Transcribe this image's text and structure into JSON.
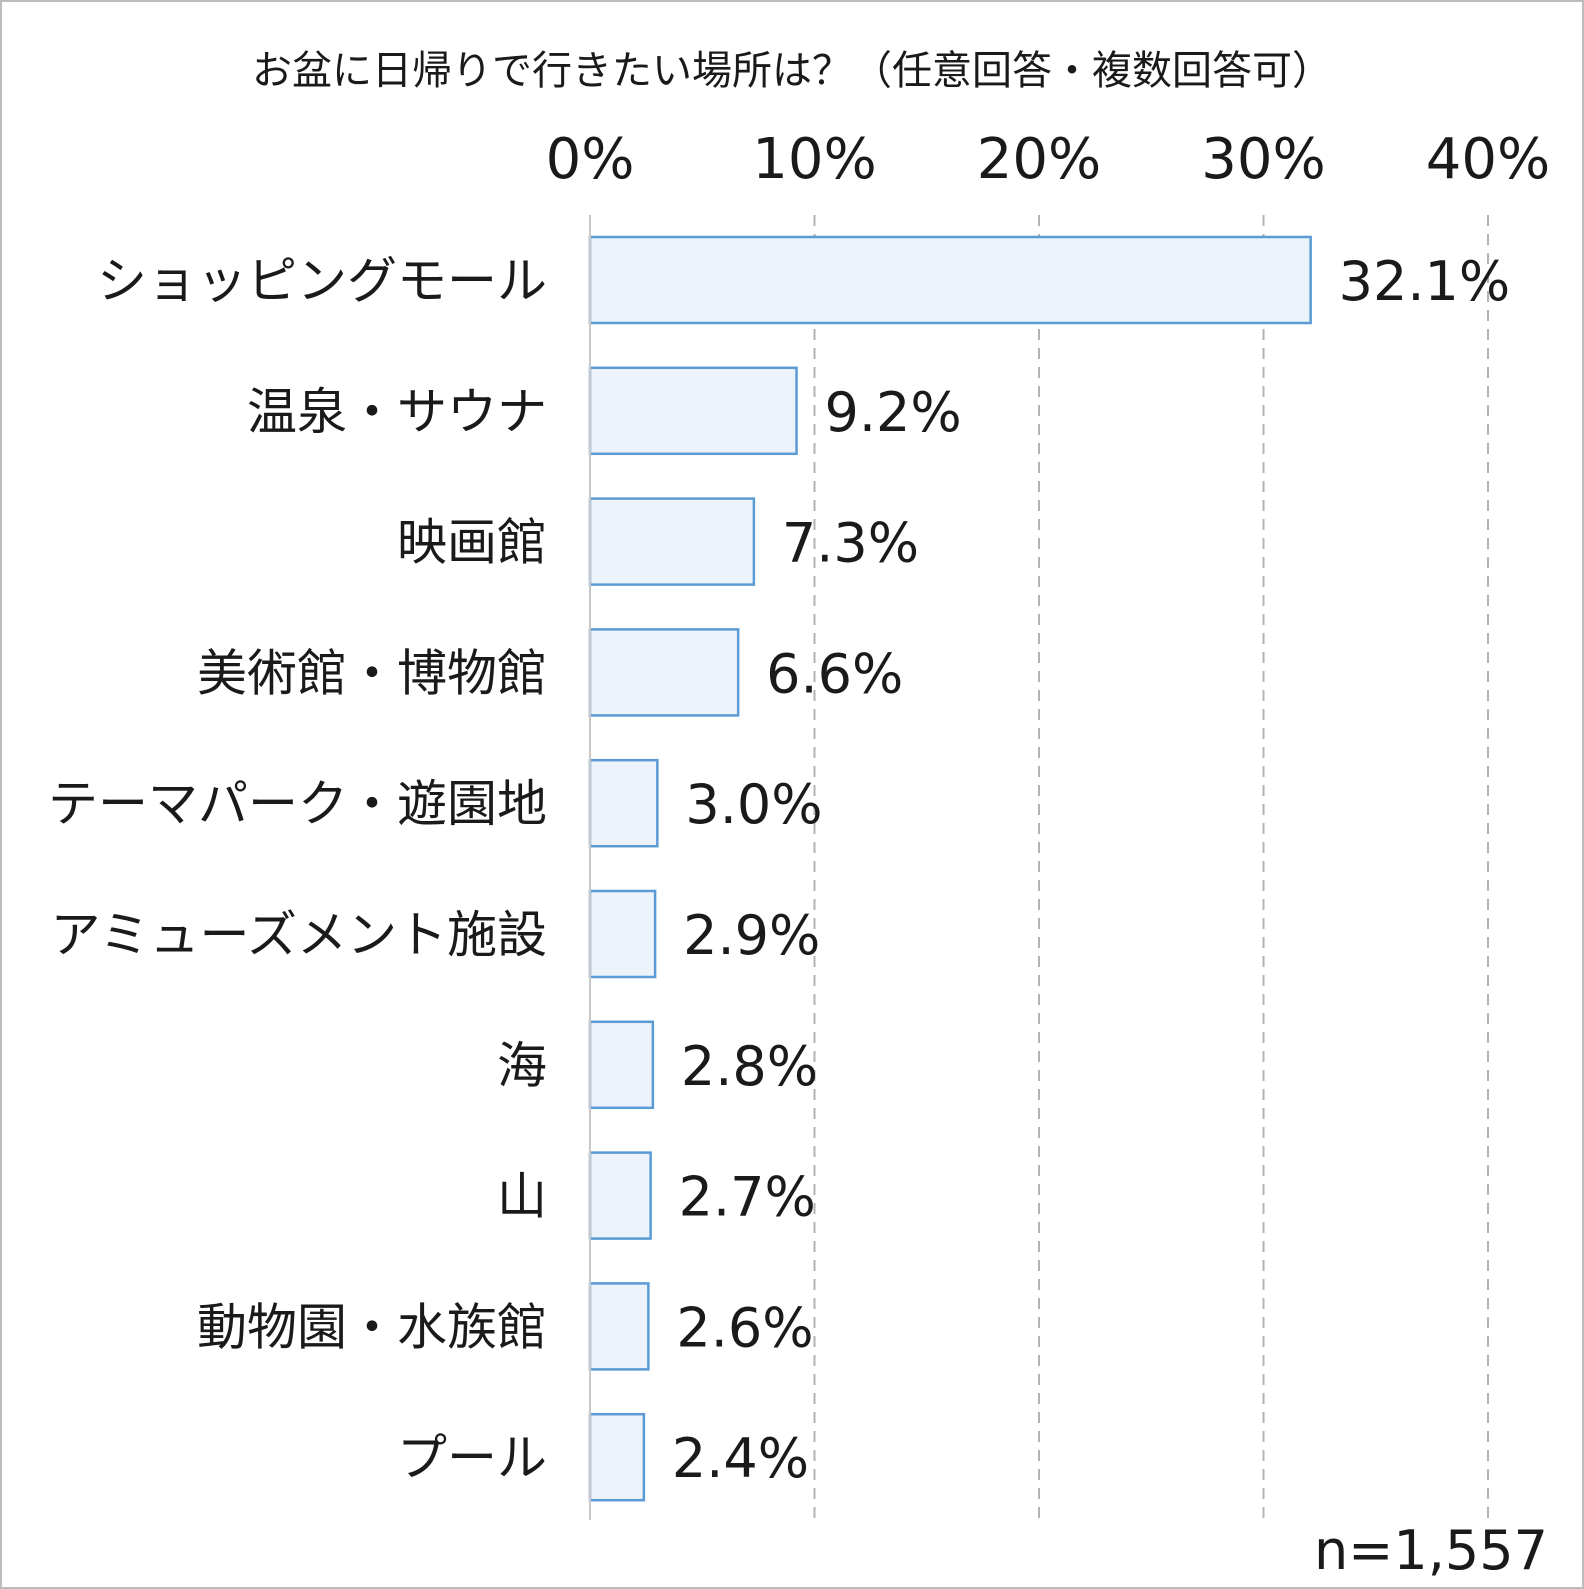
{
  "chart_data": {
    "type": "bar",
    "orientation": "horizontal",
    "title": "お盆に日帰りで行きたい場所は？（任意回答・複数回答可）",
    "categories": [
      "ショッピングモール",
      "温泉・サウナ",
      "映画館",
      "美術館・博物館",
      "テーマパーク・遊園地",
      "アミューズメント施設",
      "海",
      "山",
      "動物園・水族館",
      "プール"
    ],
    "values": [
      32.1,
      9.2,
      7.3,
      6.6,
      3.0,
      2.9,
      2.8,
      2.7,
      2.6,
      2.4
    ],
    "value_labels": [
      "32.1%",
      "9.2%",
      "7.3%",
      "6.6%",
      "3.0%",
      "2.9%",
      "2.8%",
      "2.7%",
      "2.6%",
      "2.4%"
    ],
    "xlim": [
      0,
      40
    ],
    "ticks": [
      0,
      10,
      20,
      30,
      40
    ],
    "tick_labels": [
      "0%",
      "10%",
      "20%",
      "30%",
      "40%"
    ],
    "grid": true,
    "note": "n=1,557",
    "colors": {
      "bar_fill": "#edf3fa",
      "bar_stroke": "#5b9bd5",
      "grid": "#b3b3b3",
      "axis": "#c8c8c8"
    }
  }
}
